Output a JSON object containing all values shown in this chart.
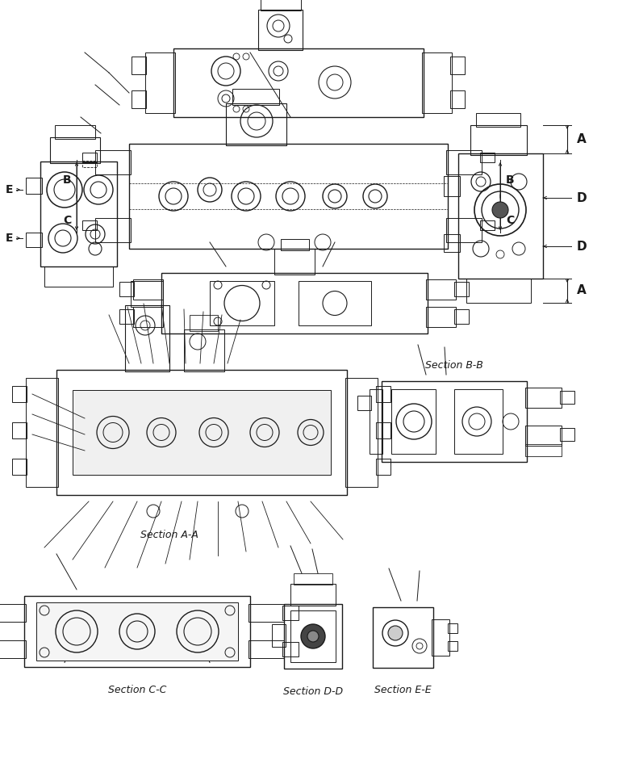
{
  "background_color": "#ffffff",
  "lc": "#1a1a1a",
  "lw": 0.7,
  "fig_w": 7.92,
  "fig_h": 9.61,
  "labels": {
    "A": "A",
    "B": "B",
    "C": "C",
    "D": "D",
    "E": "E",
    "sAA": "Section A-A",
    "sBB": "Section B-B",
    "sCC": "Section C-C",
    "sDD": "Section D-D",
    "sEE": "Section E-E"
  }
}
